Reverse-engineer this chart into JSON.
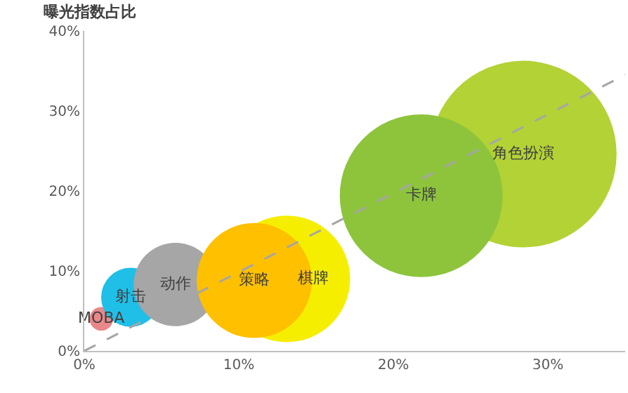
{
  "chart_data": {
    "type": "bubble",
    "ylabel": "曝光指数占比",
    "xlim": [
      0,
      35
    ],
    "ylim": [
      0,
      40
    ],
    "xticks": [
      {
        "value": 0,
        "label": "0%"
      },
      {
        "value": 10,
        "label": "10%"
      },
      {
        "value": 20,
        "label": "20%"
      },
      {
        "value": 30,
        "label": "30%"
      }
    ],
    "yticks": [
      {
        "value": 0,
        "label": "0%"
      },
      {
        "value": 10,
        "label": "10%"
      },
      {
        "value": 20,
        "label": "20%"
      },
      {
        "value": 30,
        "label": "30%"
      },
      {
        "value": 40,
        "label": "40%"
      }
    ],
    "grid": false,
    "series": [
      {
        "name": "MOBA",
        "color": "#e8888a",
        "x": [
          1.1
        ],
        "values": [
          4.0
        ],
        "sizes": [
          0.016
        ]
      },
      {
        "name": "射击",
        "color": "#1fbfe8",
        "x": [
          3.0
        ],
        "values": [
          6.7
        ],
        "sizes": [
          0.1
        ]
      },
      {
        "name": "动作",
        "color": "#a6a6a6",
        "x": [
          5.9
        ],
        "values": [
          8.3
        ],
        "sizes": [
          0.2
        ]
      },
      {
        "name": "棋牌",
        "color": "#f5ee00",
        "x": [
          13.1
        ],
        "values": [
          9.0
        ],
        "sizes": [
          0.46
        ]
      },
      {
        "name": "策略",
        "color": "#ffc000",
        "x": [
          11.0
        ],
        "values": [
          8.8
        ],
        "sizes": [
          0.38
        ]
      },
      {
        "name": "角色扮演",
        "color": "#b3d235",
        "x": [
          28.4
        ],
        "values": [
          24.6
        ],
        "sizes": [
          1
        ]
      },
      {
        "name": "卡牌",
        "color": "#8dc43c",
        "x": [
          21.8
        ],
        "values": [
          19.4
        ],
        "sizes": [
          0.76
        ]
      },
      {
        "type": "line",
        "color": "#a6a6a6",
        "line_style": "dashed",
        "marker": "none",
        "x": [
          0,
          35
        ],
        "values": [
          0,
          34.5
        ]
      }
    ]
  }
}
